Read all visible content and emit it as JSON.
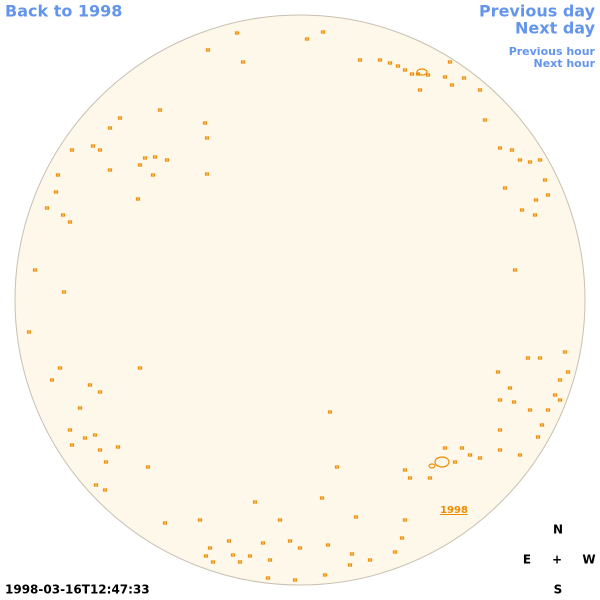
{
  "nav": {
    "back": "Back to 1998",
    "previous_day": "Previous day",
    "next_day": "Next day",
    "previous_hour": "Previous hour",
    "next_hour": "Next hour"
  },
  "region_label": "1998",
  "compass": {
    "north": "N",
    "east": "E",
    "center": "+",
    "west": "W",
    "south": "S"
  },
  "timestamp": "1998-03-16T12:47:33"
}
